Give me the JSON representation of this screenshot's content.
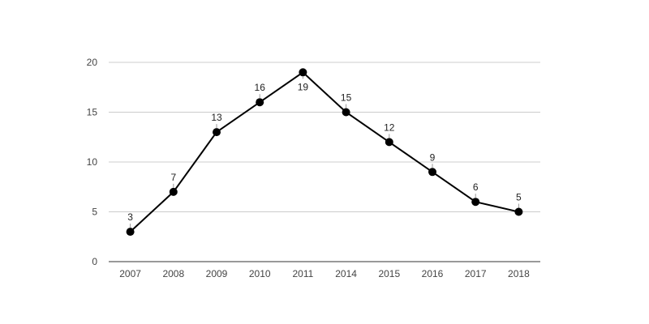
{
  "chart_data": {
    "type": "line",
    "title": "",
    "xlabel": "",
    "ylabel": "",
    "categories": [
      "2007",
      "2008",
      "2009",
      "2010",
      "2011",
      "2014",
      "2015",
      "2016",
      "2017",
      "2018"
    ],
    "series": [
      {
        "values": [
          3,
          7,
          13,
          16,
          19,
          15,
          12,
          9,
          6,
          5
        ]
      }
    ],
    "ylim": [
      0,
      20
    ],
    "yticks": [
      0,
      5,
      10,
      15,
      20
    ],
    "grid": true,
    "legend": "none",
    "line_color": "#000000",
    "data_labels": true
  }
}
